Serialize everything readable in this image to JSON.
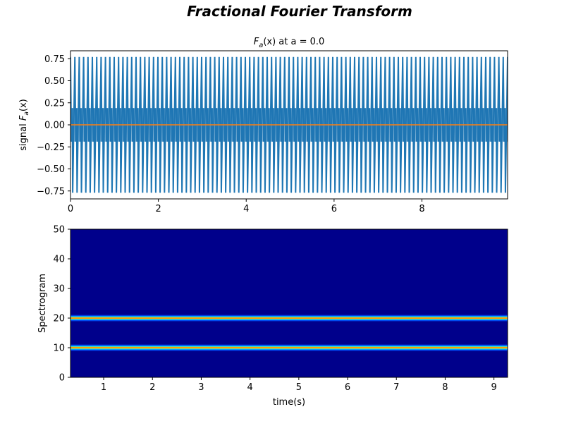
{
  "figure": {
    "suptitle": "Fractional Fourier Transform"
  },
  "chart_data": [
    {
      "type": "line",
      "title_main": "F",
      "title_sub": "a",
      "title_rest": "(x) at a = 0.0",
      "ylabel_prefix": "signal ",
      "ylabel_main": "F",
      "ylabel_sub": "a",
      "ylabel_rest": "(x)",
      "xlim": [
        0,
        9.95
      ],
      "ylim": [
        -0.84,
        0.84
      ],
      "xticks": [
        0,
        2,
        4,
        6,
        8
      ],
      "xtick_labels": [
        "0",
        "2",
        "4",
        "6",
        "8"
      ],
      "yticks": [
        0.75,
        0.5,
        0.25,
        0.0,
        -0.25,
        -0.5,
        -0.75
      ],
      "ytick_labels": [
        "0.75",
        "0.50",
        "0.25",
        "0.00",
        "−0.25",
        "−0.50",
        "−0.75"
      ],
      "series": [
        {
          "color": "#1f77b4",
          "description_values": {
            "peak_amplitude": 0.77,
            "inner_band_amplitude": 0.19,
            "oscillations_over_range": 100,
            "x_range": [
              0,
              9.95
            ]
          }
        },
        {
          "color": "#ff7f0e",
          "constant_value": 0.0
        }
      ]
    },
    {
      "type": "heatmap",
      "xlabel": "time(s)",
      "ylabel": "Spectrogram",
      "xlim": [
        0.32,
        9.28
      ],
      "ylim": [
        0,
        50
      ],
      "xticks": [
        1,
        2,
        3,
        4,
        5,
        6,
        7,
        8,
        9
      ],
      "xtick_labels": [
        "1",
        "2",
        "3",
        "4",
        "5",
        "6",
        "7",
        "8",
        "9"
      ],
      "yticks": [
        0,
        10,
        20,
        30,
        40,
        50
      ],
      "ytick_labels": [
        "0",
        "10",
        "20",
        "30",
        "40",
        "50"
      ],
      "colormap": "jet",
      "background_color": "#00008b",
      "bands": [
        {
          "frequency": 10,
          "halfwidth": 1.2
        },
        {
          "frequency": 20,
          "halfwidth": 1.2
        }
      ]
    }
  ]
}
